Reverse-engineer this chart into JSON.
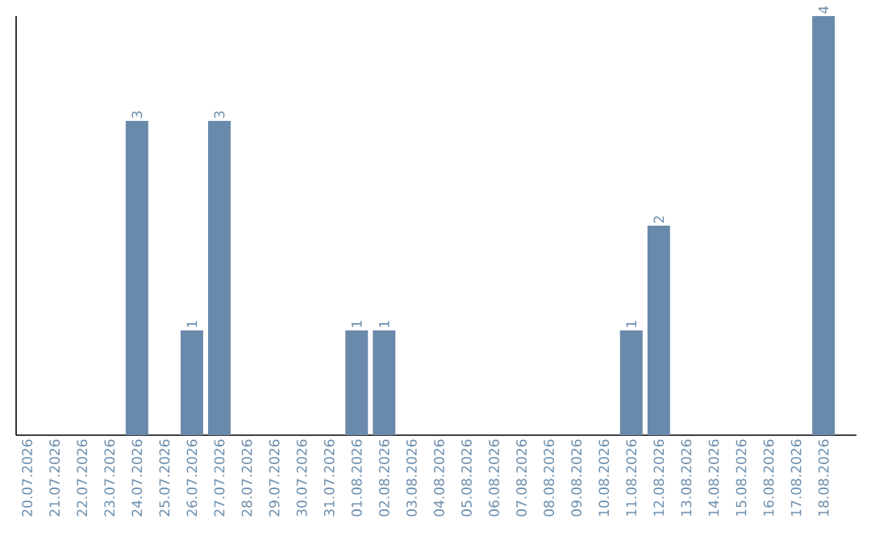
{
  "chart_data": {
    "type": "bar",
    "categories": [
      "20.07.2026",
      "21.07.2026",
      "22.07.2026",
      "23.07.2026",
      "24.07.2026",
      "25.07.2026",
      "26.07.2026",
      "27.07.2026",
      "28.07.2026",
      "29.07.2026",
      "30.07.2026",
      "31.07.2026",
      "01.08.2026",
      "02.08.2026",
      "03.08.2026",
      "04.08.2026",
      "05.08.2026",
      "06.08.2026",
      "07.08.2026",
      "08.08.2026",
      "09.08.2026",
      "10.08.2026",
      "11.08.2026",
      "12.08.2026",
      "13.08.2026",
      "14.08.2026",
      "15.08.2026",
      "16.08.2026",
      "17.08.2026",
      "18.08.2026"
    ],
    "values": [
      0,
      0,
      0,
      0,
      3,
      0,
      1,
      3,
      0,
      0,
      0,
      0,
      1,
      1,
      0,
      0,
      0,
      0,
      0,
      0,
      0,
      0,
      1,
      2,
      0,
      0,
      0,
      0,
      0,
      4
    ],
    "value_labels": [
      null,
      null,
      null,
      null,
      "3",
      null,
      "1",
      "3",
      null,
      null,
      null,
      null,
      "1",
      "1",
      null,
      null,
      null,
      null,
      null,
      null,
      null,
      null,
      "1",
      "2",
      null,
      null,
      null,
      null,
      null,
      "4"
    ],
    "color": "#6a8aab"
  }
}
